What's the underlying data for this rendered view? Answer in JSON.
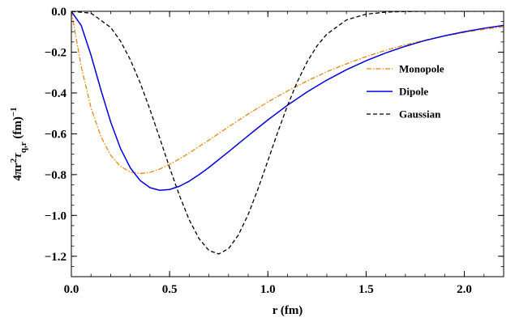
{
  "chart_data": {
    "type": "line",
    "title": "",
    "xlabel": "r (fm)",
    "ylabel": {
      "prefix": "4πr",
      "sup": "2",
      "symbol": "τ",
      "sub": "q,r",
      "units": " (fm)",
      "units_sup": "−1"
    },
    "xlim": [
      0.0,
      2.2
    ],
    "ylim": [
      -1.3,
      0.0
    ],
    "xticks": [
      {
        "value": 0.0,
        "label": "0.0"
      },
      {
        "value": 0.5,
        "label": "0.5"
      },
      {
        "value": 1.0,
        "label": "1.0"
      },
      {
        "value": 1.5,
        "label": "1.5"
      },
      {
        "value": 2.0,
        "label": "2.0"
      }
    ],
    "yticks": [
      {
        "value": 0.0,
        "label": "0.0"
      },
      {
        "value": -0.2,
        "label": "−0.2"
      },
      {
        "value": -0.4,
        "label": "−0.4"
      },
      {
        "value": -0.6,
        "label": "−0.6"
      },
      {
        "value": -0.8,
        "label": "−0.8"
      },
      {
        "value": -1.0,
        "label": "−1.0"
      },
      {
        "value": -1.2,
        "label": "−1.2"
      }
    ],
    "grid": false,
    "legend_position": "top-right",
    "series": [
      {
        "name": "Monopole",
        "color": "#e8870f",
        "dash": "dash-dot",
        "x": [
          0.0,
          0.05,
          0.1,
          0.15,
          0.2,
          0.25,
          0.3,
          0.35,
          0.4,
          0.45,
          0.5,
          0.55,
          0.6,
          0.7,
          0.8,
          0.9,
          1.0,
          1.1,
          1.2,
          1.3,
          1.4,
          1.5,
          1.6,
          1.7,
          1.8,
          1.9,
          2.0,
          2.1,
          2.2
        ],
        "values": [
          0.0,
          -0.27,
          -0.473,
          -0.613,
          -0.705,
          -0.76,
          -0.787,
          -0.795,
          -0.789,
          -0.773,
          -0.75,
          -0.723,
          -0.694,
          -0.631,
          -0.566,
          -0.503,
          -0.444,
          -0.39,
          -0.341,
          -0.296,
          -0.257,
          -0.222,
          -0.191,
          -0.164,
          -0.141,
          -0.121,
          -0.103,
          -0.088,
          -0.075
        ]
      },
      {
        "name": "Dipole",
        "color": "#0000dd",
        "dash": "solid",
        "x": [
          0.0,
          0.05,
          0.1,
          0.15,
          0.2,
          0.25,
          0.3,
          0.35,
          0.4,
          0.45,
          0.5,
          0.55,
          0.6,
          0.65,
          0.7,
          0.8,
          0.9,
          1.0,
          1.1,
          1.2,
          1.3,
          1.4,
          1.5,
          1.6,
          1.7,
          1.8,
          1.9,
          2.0,
          2.1,
          2.2
        ],
        "values": [
          0.0,
          -0.069,
          -0.215,
          -0.384,
          -0.542,
          -0.672,
          -0.767,
          -0.829,
          -0.864,
          -0.877,
          -0.873,
          -0.857,
          -0.832,
          -0.8,
          -0.765,
          -0.688,
          -0.609,
          -0.532,
          -0.46,
          -0.395,
          -0.337,
          -0.286,
          -0.242,
          -0.204,
          -0.171,
          -0.143,
          -0.12,
          -0.1,
          -0.083,
          -0.069
        ]
      },
      {
        "name": "Gaussian",
        "color": "#000000",
        "dash": "dashed",
        "x": [
          0.0,
          0.1,
          0.2,
          0.25,
          0.3,
          0.35,
          0.4,
          0.45,
          0.5,
          0.55,
          0.6,
          0.65,
          0.7,
          0.75,
          0.8,
          0.85,
          0.9,
          0.95,
          1.0,
          1.05,
          1.1,
          1.15,
          1.2,
          1.25,
          1.3,
          1.4,
          1.5,
          1.6,
          1.7,
          1.8,
          2.0,
          2.2
        ],
        "values": [
          0.0,
          -0.009,
          -0.079,
          -0.146,
          -0.237,
          -0.35,
          -0.481,
          -0.622,
          -0.766,
          -0.902,
          -1.022,
          -1.114,
          -1.172,
          -1.189,
          -1.163,
          -1.096,
          -0.995,
          -0.87,
          -0.732,
          -0.593,
          -0.462,
          -0.345,
          -0.247,
          -0.17,
          -0.112,
          -0.042,
          -0.014,
          -0.004,
          -0.001,
          0.0,
          0.0,
          0.0
        ]
      }
    ]
  }
}
